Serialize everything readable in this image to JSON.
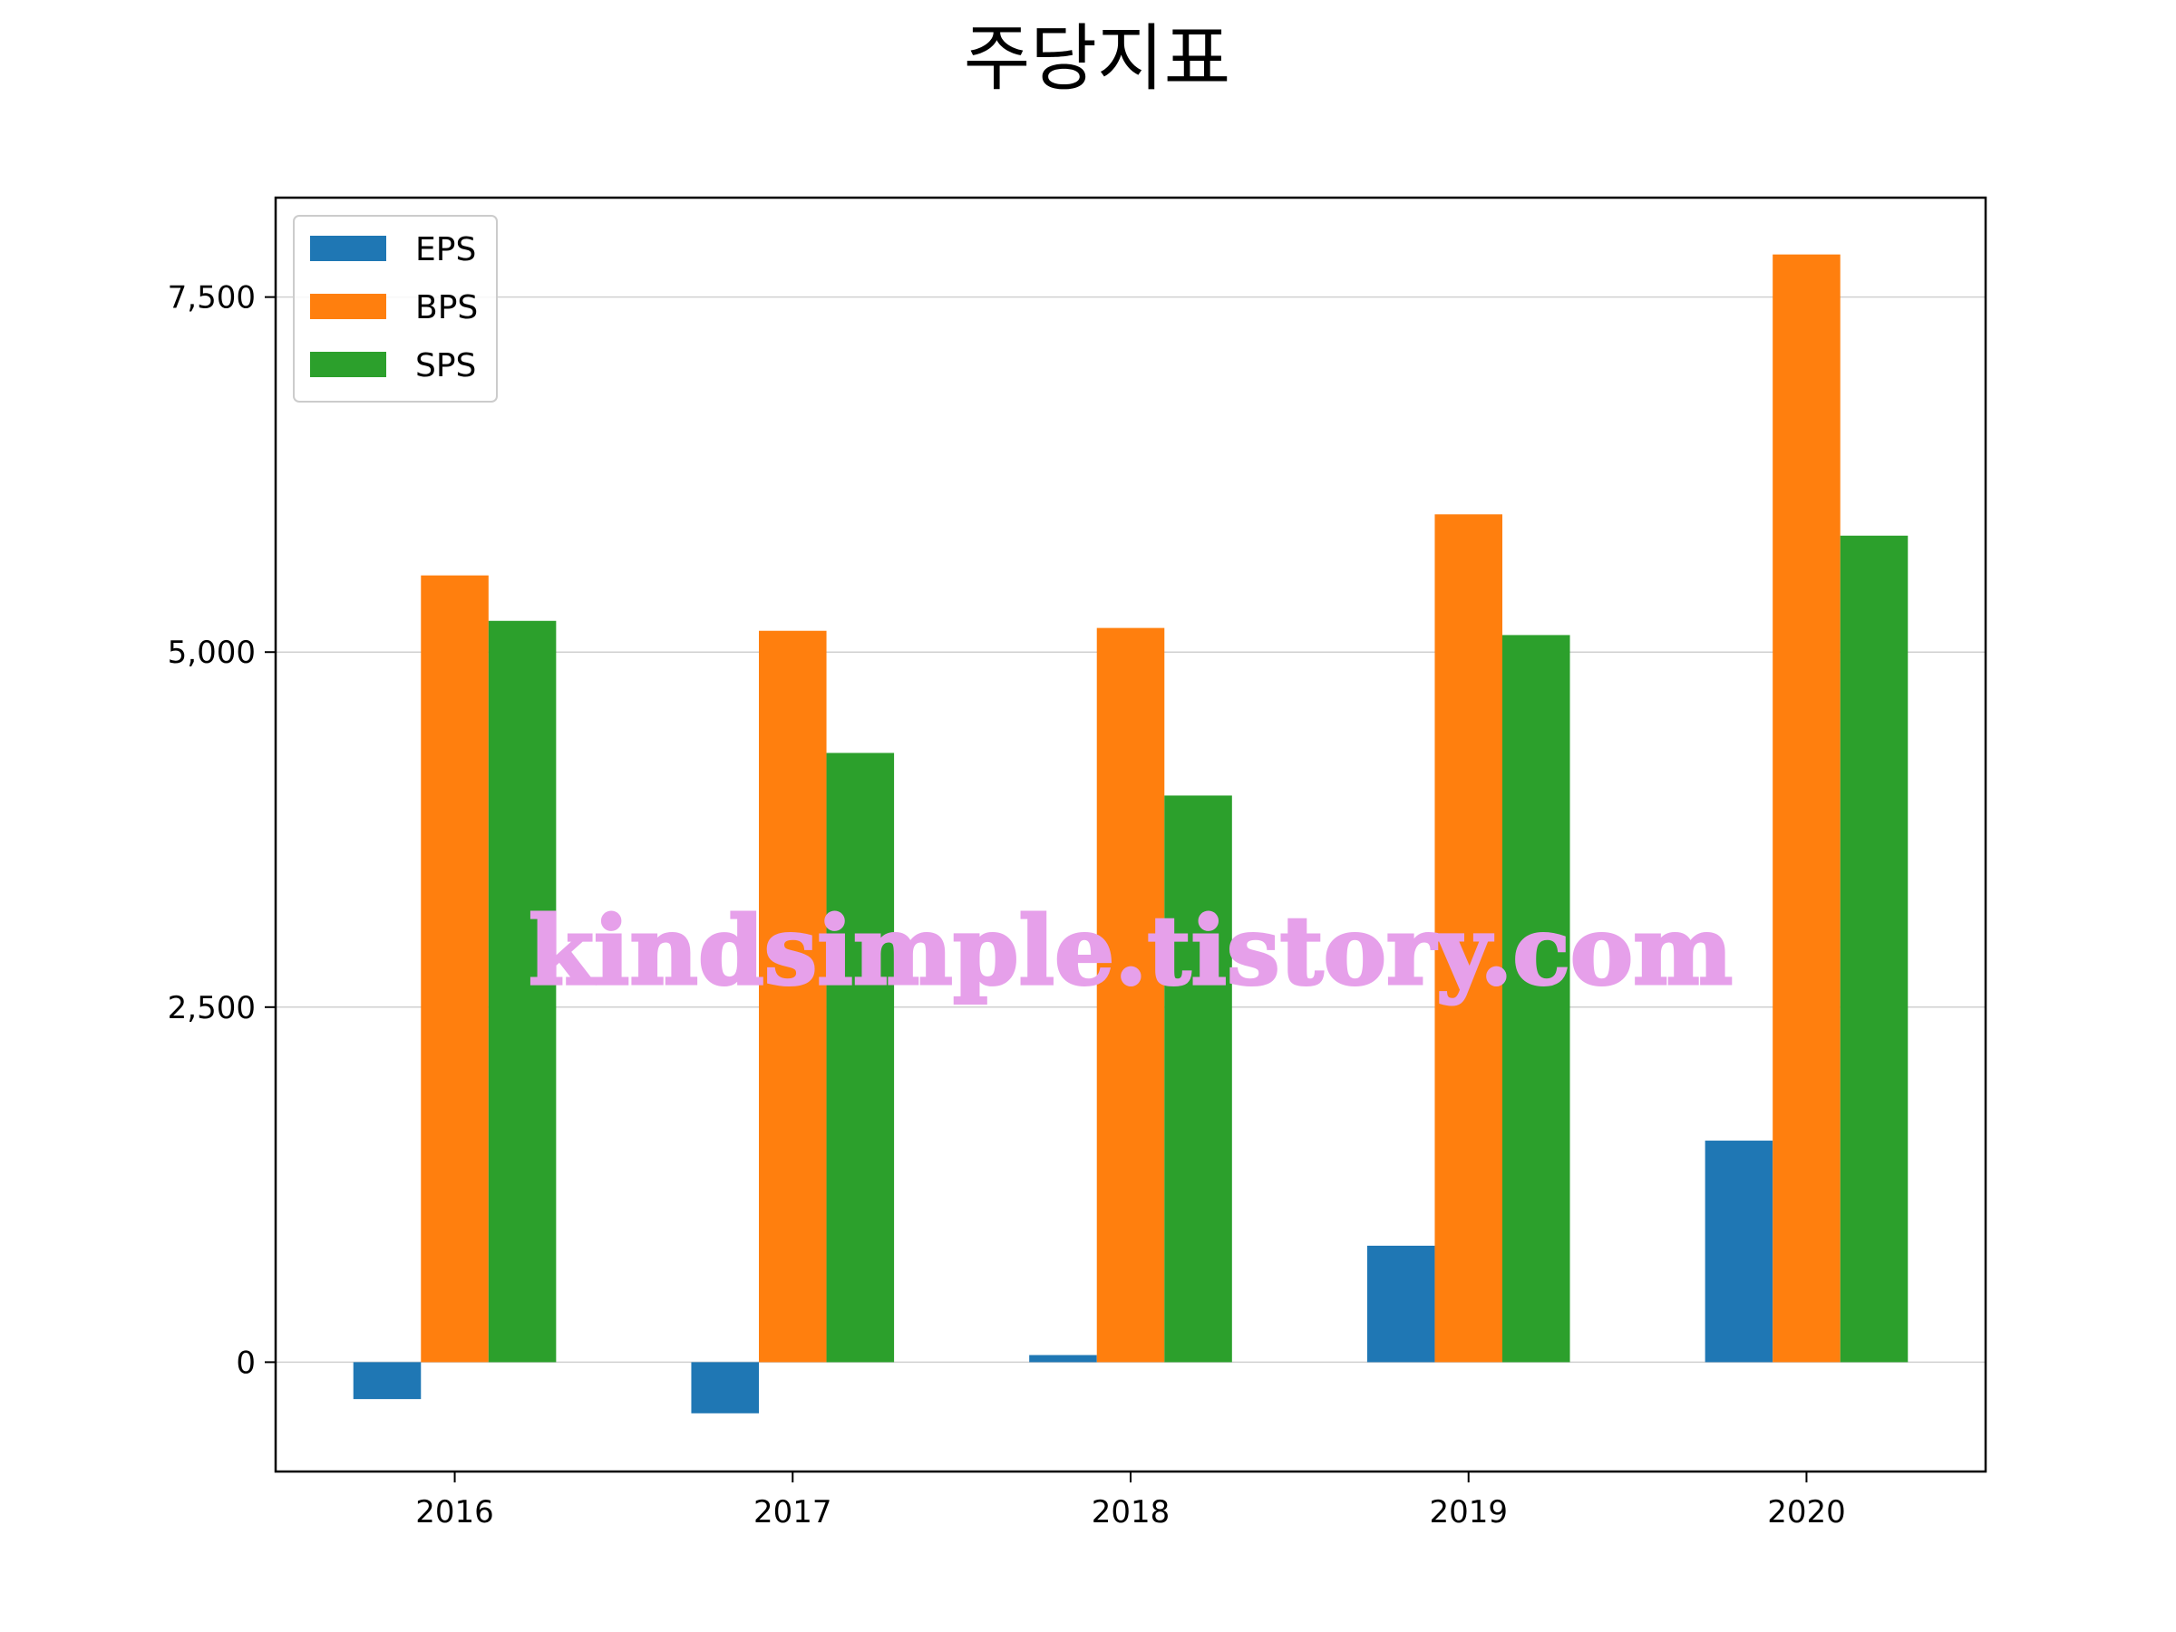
{
  "chart_data": {
    "type": "bar",
    "title": "주당지표",
    "xlabel": "",
    "ylabel": "",
    "categories": [
      "2016",
      "2017",
      "2018",
      "2019",
      "2020"
    ],
    "series": [
      {
        "name": "EPS",
        "values": [
          -260,
          -360,
          50,
          820,
          1560
        ]
      },
      {
        "name": "BPS",
        "values": [
          5540,
          5150,
          5170,
          5970,
          7800
        ]
      },
      {
        "name": "SPS",
        "values": [
          5220,
          4290,
          3990,
          5120,
          5820
        ]
      }
    ],
    "ylim": [
      -770,
      8200
    ],
    "yticks": [
      0,
      2500,
      5000,
      7500
    ],
    "ytick_labels": [
      "0",
      "2,500",
      "5,000",
      "7,500"
    ],
    "grid": "y",
    "legend": "top-left",
    "colors": [
      "#1f77b4",
      "#ff7f0e",
      "#2ca02c"
    ],
    "watermark": "kindsimple.tistory.com"
  }
}
